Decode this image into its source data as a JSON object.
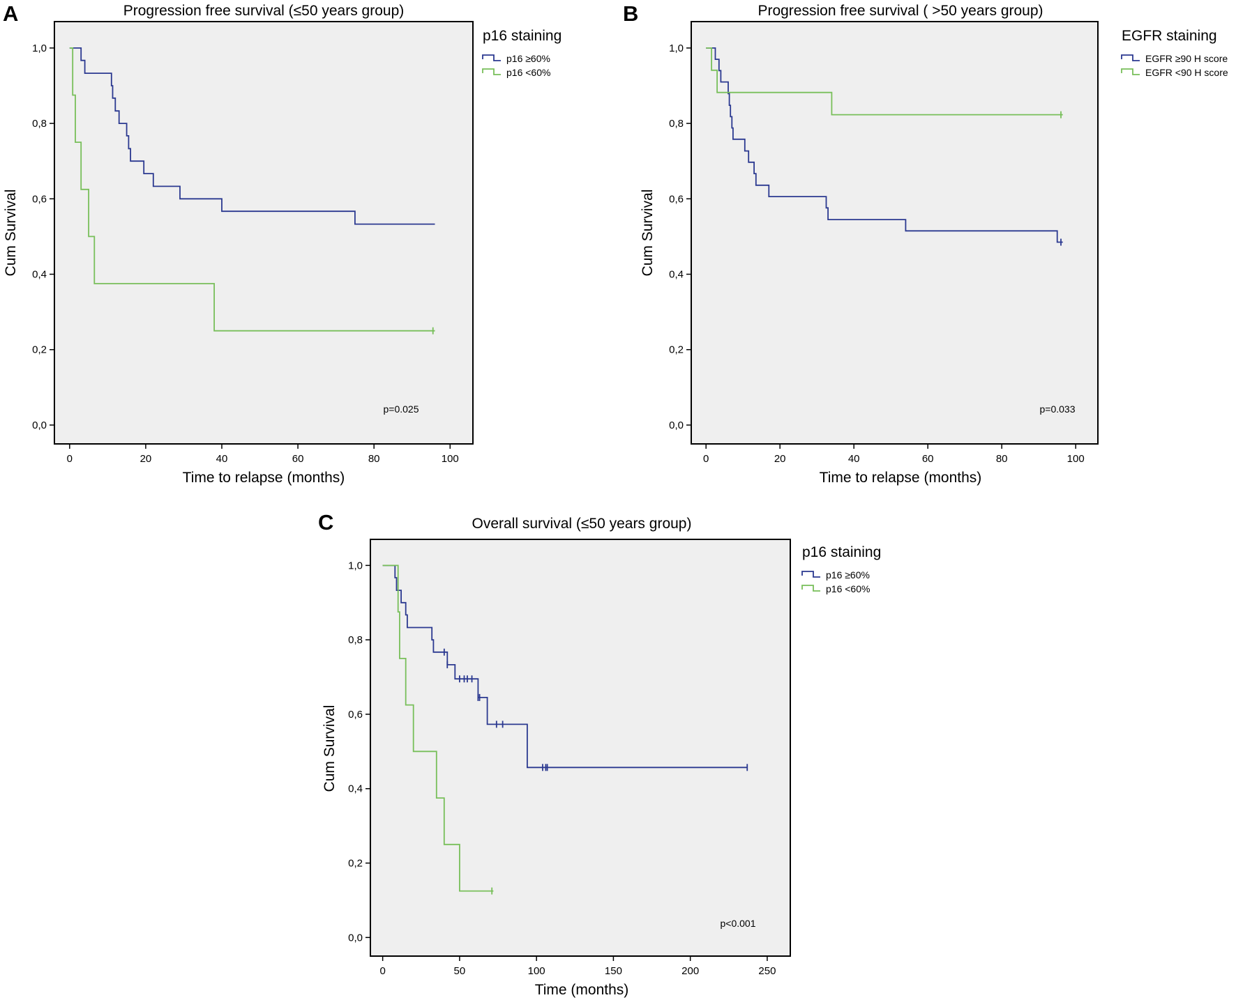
{
  "colors": {
    "p16_high": "#2b3990",
    "p16_low": "#78bf5a",
    "plot_bg": "#efefef",
    "frame": "#000000"
  },
  "chart_data": [
    {
      "type": "line",
      "panel_letter": "A",
      "title": "Progression free survival (≤50 years group)",
      "xlabel": "Time to relapse (months)",
      "ylabel": "Cum Survival",
      "xlim": [
        -4,
        106
      ],
      "ylim": [
        -0.05,
        1.07
      ],
      "xticks": [
        0,
        20,
        40,
        60,
        80,
        100
      ],
      "xtick_labels": [
        "0",
        "20",
        "40",
        "60",
        "80",
        "100"
      ],
      "yticks": [
        0,
        0.2,
        0.4,
        0.6,
        0.8,
        1.0
      ],
      "ytick_labels": [
        "0,0",
        "0,2",
        "0,4",
        "0,6",
        "0,8",
        "1,0"
      ],
      "legend": {
        "title": "p16 staining",
        "position": "outside-right"
      },
      "annotation": "p=0.025",
      "series": [
        {
          "name": "p16 ≥60%",
          "color": "#2b3990",
          "steps": [
            [
              0,
              1.0
            ],
            [
              3,
              0.967
            ],
            [
              4,
              0.933
            ],
            [
              11,
              0.9
            ],
            [
              11.3,
              0.867
            ],
            [
              12,
              0.833
            ],
            [
              13,
              0.8
            ],
            [
              15,
              0.767
            ],
            [
              15.5,
              0.733
            ],
            [
              16,
              0.7
            ],
            [
              19.5,
              0.667
            ],
            [
              22,
              0.633
            ],
            [
              29,
              0.6
            ],
            [
              40,
              0.567
            ],
            [
              75,
              0.533
            ]
          ],
          "end": 96,
          "censored": []
        },
        {
          "name": "p16 <60%",
          "color": "#78bf5a",
          "steps": [
            [
              0,
              1.0
            ],
            [
              0.8,
              0.875
            ],
            [
              1.5,
              0.75
            ],
            [
              3,
              0.625
            ],
            [
              5,
              0.5
            ],
            [
              6.5,
              0.375
            ],
            [
              38,
              0.25
            ]
          ],
          "end": 96,
          "censored": [
            95.5
          ]
        }
      ]
    },
    {
      "type": "line",
      "panel_letter": "B",
      "title": "Progression free survival ( >50 years group)",
      "xlabel": "Time to relapse (months)",
      "ylabel": "Cum Survival",
      "xlim": [
        -4,
        106
      ],
      "ylim": [
        -0.05,
        1.07
      ],
      "xticks": [
        0,
        20,
        40,
        60,
        80,
        100
      ],
      "xtick_labels": [
        "0",
        "20",
        "40",
        "60",
        "80",
        "100"
      ],
      "yticks": [
        0,
        0.2,
        0.4,
        0.6,
        0.8,
        1.0
      ],
      "ytick_labels": [
        "0,0",
        "0,2",
        "0,4",
        "0,6",
        "0,8",
        "1,0"
      ],
      "legend": {
        "title": "EGFR staining",
        "position": "outside-right"
      },
      "annotation": "p=0.033",
      "series": [
        {
          "name": "EGFR ≥90 H score",
          "color": "#2b3990",
          "steps": [
            [
              0,
              1.0
            ],
            [
              2.5,
              0.97
            ],
            [
              3.5,
              0.94
            ],
            [
              4,
              0.91
            ],
            [
              6,
              0.879
            ],
            [
              6.3,
              0.848
            ],
            [
              6.6,
              0.818
            ],
            [
              7,
              0.788
            ],
            [
              7.3,
              0.758
            ],
            [
              10.5,
              0.727
            ],
            [
              11.5,
              0.697
            ],
            [
              13,
              0.667
            ],
            [
              13.5,
              0.636
            ],
            [
              17,
              0.606
            ],
            [
              32.5,
              0.576
            ],
            [
              33,
              0.545
            ],
            [
              54,
              0.515
            ],
            [
              95,
              0.485
            ]
          ],
          "end": 96.5,
          "censored": [
            96
          ]
        },
        {
          "name": "EGFR <90 H score",
          "color": "#78bf5a",
          "steps": [
            [
              0,
              1.0
            ],
            [
              1.5,
              0.941
            ],
            [
              3,
              0.882
            ],
            [
              34,
              0.823
            ]
          ],
          "end": 96.5,
          "censored": [
            96
          ]
        }
      ]
    },
    {
      "type": "line",
      "panel_letter": "C",
      "title": "Overall survival (≤50 years group)",
      "xlabel": "Time (months)",
      "ylabel": "Cum Survival",
      "xlim": [
        -8,
        265
      ],
      "ylim": [
        -0.05,
        1.07
      ],
      "xticks": [
        0,
        50,
        100,
        150,
        200,
        250
      ],
      "xtick_labels": [
        "0",
        "50",
        "100",
        "150",
        "200",
        "250"
      ],
      "yticks": [
        0,
        0.2,
        0.4,
        0.6,
        0.8,
        1.0
      ],
      "ytick_labels": [
        "0,0",
        "0,2",
        "0,4",
        "0,6",
        "0,8",
        "1,0"
      ],
      "legend": {
        "title": "p16 staining",
        "position": "outside-right"
      },
      "annotation": "p<0.001",
      "series": [
        {
          "name": "p16 ≥60%",
          "color": "#2b3990",
          "steps": [
            [
              0,
              1.0
            ],
            [
              8,
              0.967
            ],
            [
              9,
              0.933
            ],
            [
              12,
              0.9
            ],
            [
              15,
              0.867
            ],
            [
              16,
              0.833
            ],
            [
              32,
              0.8
            ],
            [
              33,
              0.767
            ],
            [
              42,
              0.733
            ],
            [
              47,
              0.695
            ],
            [
              62,
              0.645
            ],
            [
              68,
              0.573
            ],
            [
              94,
              0.457
            ]
          ],
          "end": 237,
          "censored": [
            40,
            42,
            50,
            53,
            55,
            58,
            62,
            63,
            74,
            78,
            104,
            106,
            107,
            237
          ]
        },
        {
          "name": "p16 <60%",
          "color": "#78bf5a",
          "steps": [
            [
              0,
              1.0
            ],
            [
              10,
              0.875
            ],
            [
              11,
              0.75
            ],
            [
              15,
              0.625
            ],
            [
              20,
              0.5
            ],
            [
              35,
              0.375
            ],
            [
              40,
              0.25
            ],
            [
              50,
              0.125
            ]
          ],
          "end": 72,
          "censored": [
            71
          ]
        }
      ]
    }
  ]
}
